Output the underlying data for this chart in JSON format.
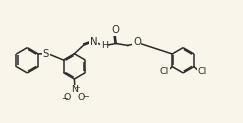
{
  "bg_color": "#faf5eb",
  "line_color": "#2a2a2a",
  "text_color": "#2a2a2a",
  "figsize": [
    2.43,
    1.23
  ],
  "dpi": 100,
  "bond_lw": 1.1,
  "font_size": 6.8,
  "xlim": [
    0,
    10
  ],
  "ylim": [
    0,
    5
  ]
}
